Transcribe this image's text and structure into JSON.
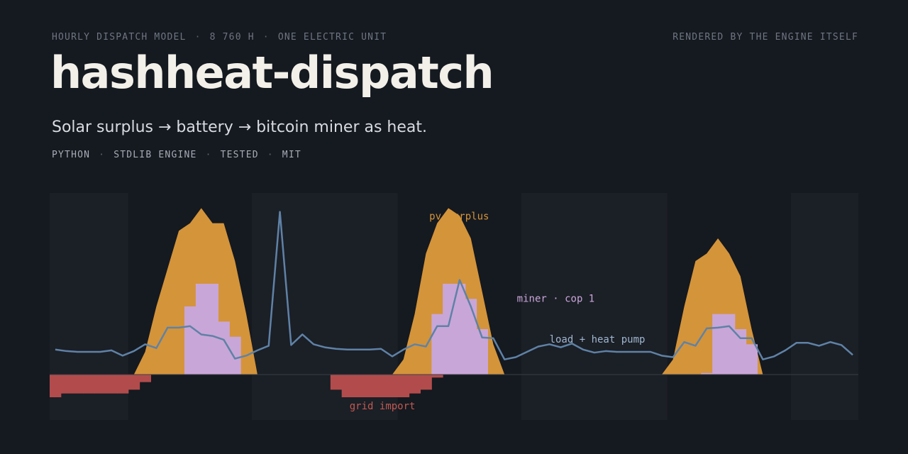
{
  "header": {
    "kicker": [
      "HOURLY DISPATCH MODEL",
      "8 760 H",
      "ONE ELECTRIC UNIT"
    ],
    "credit": "RENDERED BY THE ENGINE ITSELF",
    "title": "hashheat-dispatch",
    "subtitle": "Solar surplus → battery → bitcoin miner as heat.",
    "tech": [
      "PYTHON",
      "STDLIB ENGINE",
      "TESTED",
      "MIT"
    ],
    "separator": "·"
  },
  "colors": {
    "background": "#151920",
    "night_band": "#1b1f26",
    "pv_surplus": "#d4943a",
    "miner": "#c9a6d8",
    "load": "#5f82a6",
    "grid_import": "#b24c4c",
    "baseline": "#3a3f48"
  },
  "chart_data": {
    "type": "area",
    "x_unit": "hour",
    "xlim": [
      0,
      72
    ],
    "ylim": [
      -6,
      24
    ],
    "night_periods": [
      [
        0,
        7
      ],
      [
        18,
        31
      ],
      [
        42,
        55
      ],
      [
        66,
        72
      ]
    ],
    "series": [
      {
        "name": "pv surplus",
        "kind": "area",
        "values": [
          0,
          0,
          0,
          0,
          0,
          0,
          0,
          0,
          3,
          9,
          14,
          19,
          20,
          22,
          20,
          20,
          15,
          8,
          0,
          0,
          0,
          0,
          0,
          0,
          0,
          0,
          0,
          0,
          0,
          0,
          0,
          2,
          8,
          16,
          20,
          22,
          21,
          18,
          11,
          4,
          0,
          0,
          0,
          0,
          0,
          0,
          0,
          0,
          0,
          0,
          0,
          0,
          0,
          0,
          0,
          2,
          9,
          15,
          16,
          18,
          16,
          13,
          6,
          0,
          0,
          0,
          0,
          0,
          0,
          0,
          0,
          0
        ]
      },
      {
        "name": "miner · cop 1",
        "kind": "step",
        "values": [
          0,
          0,
          0,
          0,
          0,
          0,
          0,
          0,
          0,
          0,
          0,
          0,
          9,
          12,
          12,
          7,
          5,
          0,
          0,
          0,
          0,
          0,
          0,
          0,
          0,
          0,
          0,
          0,
          0,
          0,
          0,
          0,
          0,
          0,
          8,
          12,
          12,
          10,
          6,
          0,
          0,
          0,
          0,
          0,
          0,
          0,
          0,
          0,
          0,
          0,
          0,
          0,
          0,
          0,
          0,
          0,
          0,
          0,
          0.2,
          8,
          8,
          6,
          4,
          0,
          0,
          0,
          0,
          0,
          0,
          0,
          0,
          0
        ]
      },
      {
        "name": "load + heat pump",
        "kind": "line",
        "values": [
          3.3,
          3.1,
          3.0,
          3.0,
          3.0,
          3.2,
          2.5,
          3.1,
          4.0,
          3.5,
          6.2,
          6.2,
          6.4,
          5.3,
          5.1,
          4.6,
          2.1,
          2.5,
          3.2,
          3.8,
          21.5,
          3.9,
          5.3,
          4.0,
          3.6,
          3.4,
          3.3,
          3.3,
          3.3,
          3.4,
          2.4,
          3.3,
          4.0,
          3.7,
          6.4,
          6.4,
          12.5,
          9.0,
          4.9,
          4.8,
          2.0,
          2.3,
          3.0,
          3.7,
          4.0,
          3.6,
          4.1,
          3.3,
          2.9,
          3.1,
          3.0,
          3.0,
          3.0,
          3.0,
          2.5,
          2.3,
          4.3,
          3.8,
          6.1,
          6.2,
          6.4,
          4.8,
          4.8,
          2.0,
          2.4,
          3.2,
          4.2,
          4.2,
          3.8,
          4.3,
          3.9,
          2.6
        ]
      },
      {
        "name": "grid import",
        "kind": "step",
        "values": [
          -3,
          -2.5,
          -2.5,
          -2.5,
          -2.5,
          -2.5,
          -2.5,
          -2,
          -1,
          0,
          0,
          0,
          0,
          0,
          0,
          0,
          0,
          0,
          0,
          0,
          0,
          0,
          0,
          0,
          0,
          -2,
          -3,
          -3,
          -3,
          -3,
          -3,
          -3,
          -2.5,
          -2,
          -0.4,
          0,
          0,
          0,
          0,
          0,
          0,
          0,
          0,
          0,
          0,
          0,
          0,
          0,
          0,
          0,
          0,
          0,
          0,
          0,
          0,
          0,
          0,
          0,
          0,
          0,
          0,
          0,
          0,
          0,
          0,
          0,
          0,
          0,
          0,
          0,
          0,
          0
        ]
      }
    ],
    "annotations": [
      {
        "text": "pv surplus",
        "series": "pv surplus"
      },
      {
        "text": "miner · cop 1",
        "series": "miner · cop 1"
      },
      {
        "text": "load + heat pump",
        "series": "load + heat pump"
      },
      {
        "text": "grid import",
        "series": "grid import"
      }
    ],
    "grid": false,
    "legend": "none"
  }
}
